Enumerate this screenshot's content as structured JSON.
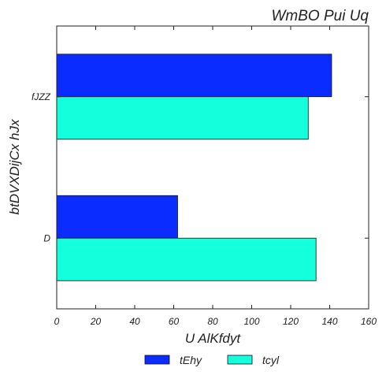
{
  "chart_data": {
    "type": "bar",
    "orientation": "horizontal",
    "title": "WmBO Pui  Uq",
    "xlabel": "U AlKfdyt",
    "ylabel": "btDVXDijCx hJx",
    "categories": [
      "D",
      "fJZZ"
    ],
    "series": [
      {
        "name": "tEhy",
        "values": [
          62,
          141
        ],
        "color": "#0a2cff"
      },
      {
        "name": "tcyl",
        "values": [
          133,
          129
        ],
        "color": "#14ffdc"
      }
    ],
    "xlim": [
      0,
      160
    ],
    "xticks": [
      0,
      20,
      40,
      60,
      80,
      100,
      120,
      140,
      160
    ],
    "grid": false,
    "legend": "bottom-center"
  }
}
